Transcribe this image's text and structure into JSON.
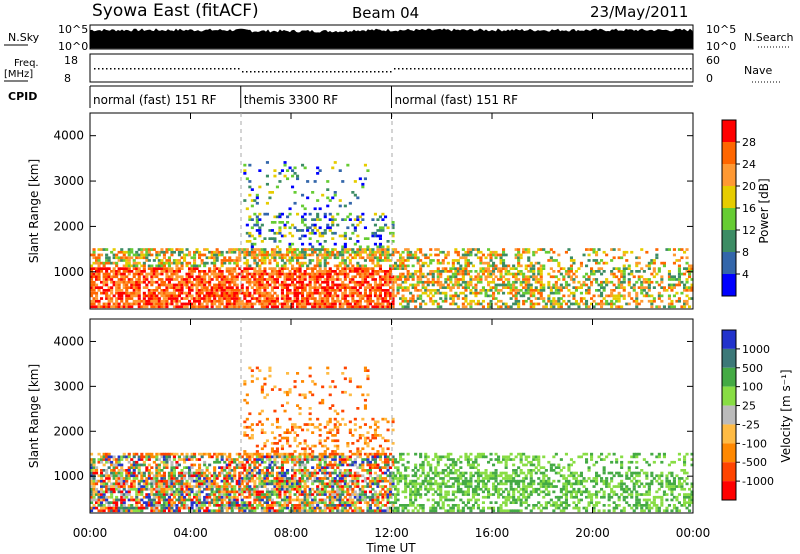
{
  "header": {
    "title": "Syowa East (fitACF)",
    "beam": "Beam 04",
    "date": "23/May/2011"
  },
  "strips": {
    "nsky_label": "N.Sky",
    "nsky_ticks": [
      "10^5",
      "10^0"
    ],
    "nsearch_label": "N.Search",
    "nsearch_ticks": [
      "10^5",
      "10^0"
    ],
    "freq_label": "Freq.",
    "freq_unit": "[MHz]",
    "freq_ticks": [
      "18",
      "8"
    ],
    "nave_label": "Nave",
    "nave_ticks": [
      "60",
      "0"
    ],
    "cpid_label": "CPID"
  },
  "cpid": [
    {
      "label": "normal (fast) 151 RF",
      "start_hour": 0,
      "end_hour": 6
    },
    {
      "label": "themis 3300 RF",
      "start_hour": 6,
      "end_hour": 12
    },
    {
      "label": "normal (fast) 151 RF",
      "start_hour": 12,
      "end_hour": 24
    }
  ],
  "chart_data": [
    {
      "type": "heatmap",
      "name": "power",
      "ylabel": "Slant Range [km]",
      "xlabel": "",
      "xlim": [
        0,
        24
      ],
      "ylim": [
        180,
        4500
      ],
      "yticks": [
        "1000",
        "2000",
        "3000",
        "4000"
      ],
      "xticks": [
        "00:00",
        "04:00",
        "08:00",
        "12:00",
        "16:00",
        "20:00",
        "00:00"
      ],
      "colorbar": {
        "label": "Power [dB]",
        "ticks": [
          "28",
          "24",
          "20",
          "16",
          "12",
          "8",
          "4"
        ],
        "colors": [
          "#ff0000",
          "#ff6600",
          "#ff9933",
          "#e6cc00",
          "#66cc33",
          "#3c8c64",
          "#3366aa",
          "#0000ff"
        ]
      }
    },
    {
      "type": "heatmap",
      "name": "velocity",
      "ylabel": "Slant Range [km]",
      "xlabel": "Time UT",
      "xlim": [
        0,
        24
      ],
      "ylim": [
        180,
        4500
      ],
      "yticks": [
        "1000",
        "2000",
        "3000",
        "4000"
      ],
      "xticks": [
        "00:00",
        "04:00",
        "08:00",
        "12:00",
        "16:00",
        "20:00",
        "00:00"
      ],
      "colorbar": {
        "label": "Velocity [m s⁻¹]",
        "ticks": [
          "1000",
          "500",
          "100",
          "25",
          "-25",
          "-100",
          "-500",
          "-1000"
        ],
        "colors": [
          "#2233cc",
          "#3c7878",
          "#44aa44",
          "#88dd44",
          "#bbbbbb",
          "#ffbb44",
          "#ff8800",
          "#ff4400",
          "#ff0000"
        ]
      }
    }
  ]
}
